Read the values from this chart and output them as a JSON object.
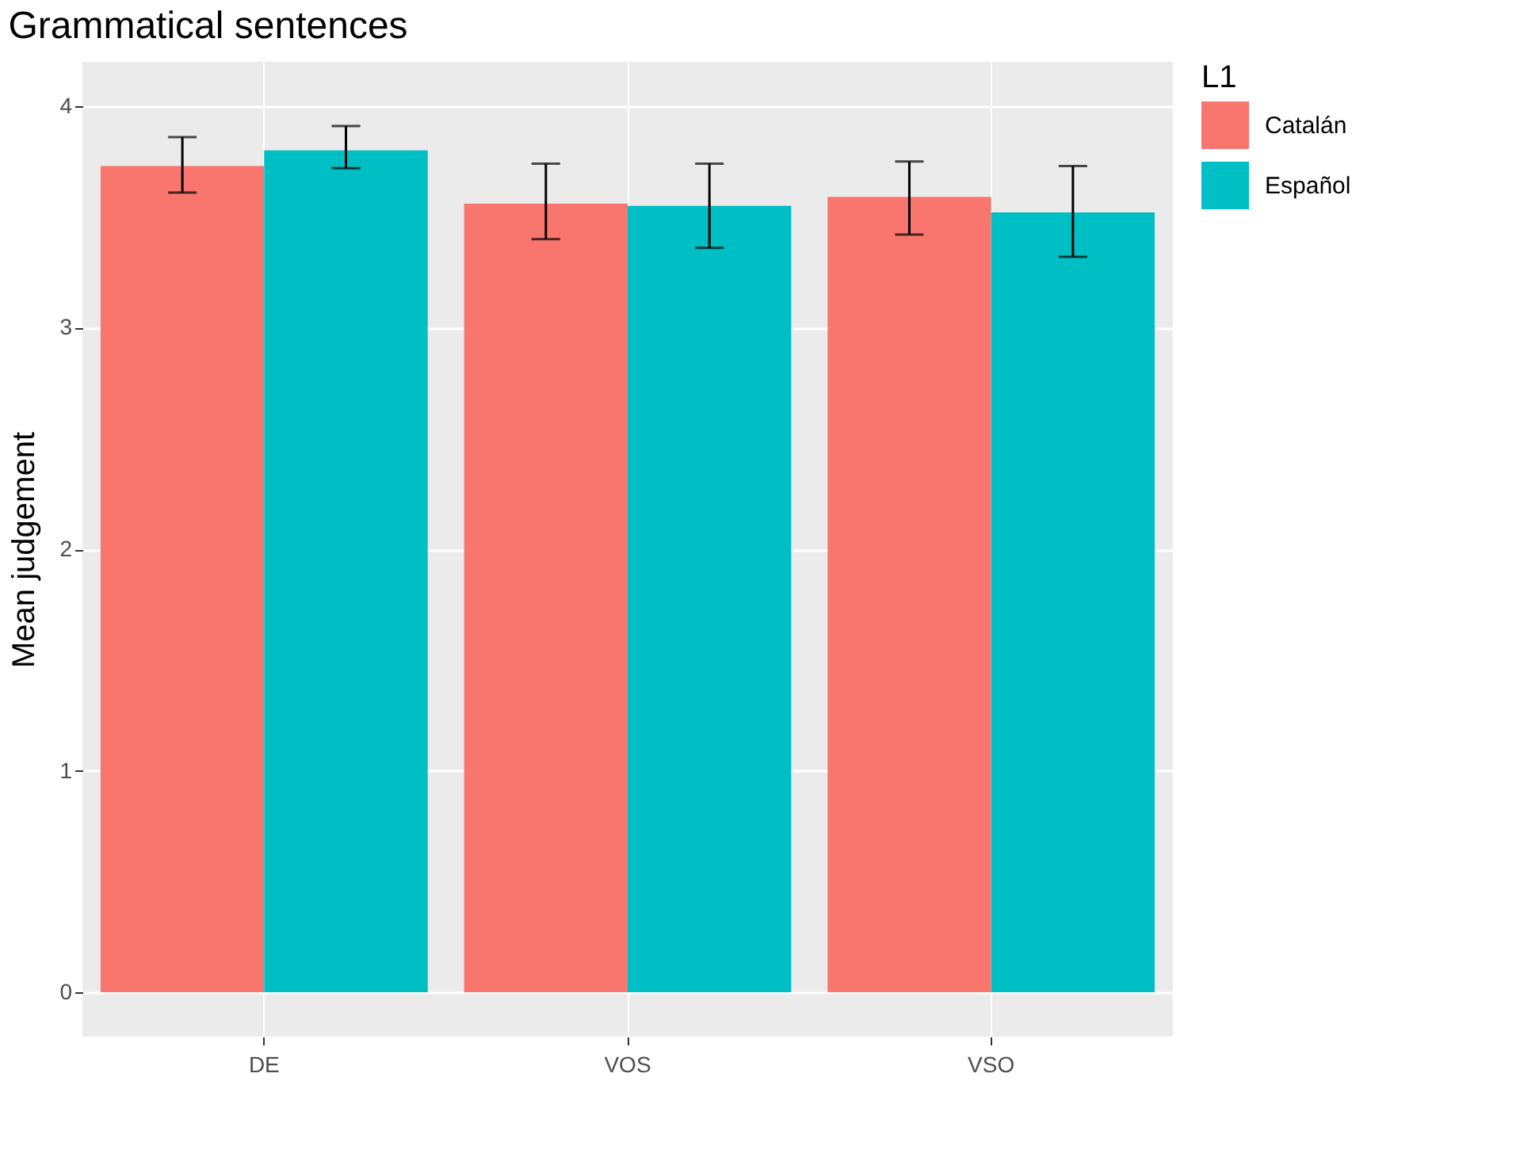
{
  "chart_data": {
    "type": "bar",
    "title": "Grammatical sentences",
    "ylabel": "Mean judgement",
    "legend_title": "L1",
    "categories": [
      "DE",
      "VOS",
      "VSO"
    ],
    "series": [
      {
        "name": "Catalán",
        "color": "#f8766d",
        "values": [
          3.73,
          3.56,
          3.59
        ],
        "errors": [
          [
            3.61,
            3.86
          ],
          [
            3.4,
            3.74
          ],
          [
            3.42,
            3.75
          ]
        ]
      },
      {
        "name": "Español",
        "color": "#00bfc4",
        "values": [
          3.8,
          3.55,
          3.52
        ],
        "errors": [
          [
            3.72,
            3.91
          ],
          [
            3.36,
            3.74
          ],
          [
            3.32,
            3.73
          ]
        ]
      }
    ],
    "ylim": [
      -0.2,
      4.2
    ],
    "yticks": [
      0,
      1,
      2,
      3,
      4
    ],
    "grid": true,
    "legend": "right"
  }
}
